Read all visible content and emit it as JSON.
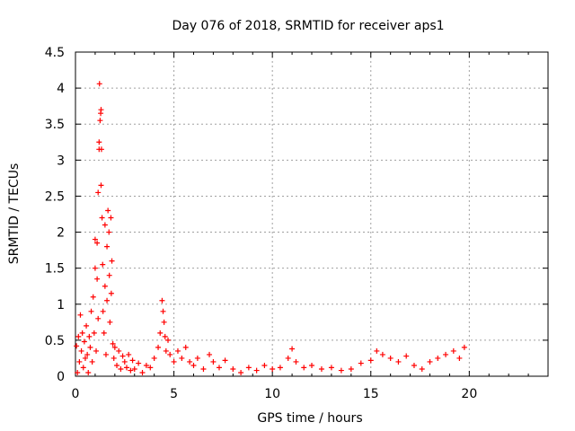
{
  "chart_data": {
    "type": "scatter",
    "title": "Day 076 of 2018, SRMTID for receiver aps1",
    "xlabel": "GPS time / hours",
    "ylabel": "SRMTID / TECUs",
    "xlim": [
      0,
      24
    ],
    "ylim": [
      0,
      4.5
    ],
    "x_ticks": [
      0,
      5,
      10,
      15,
      20
    ],
    "x_tick_labels": [
      "0",
      "5",
      "10",
      "15",
      "20"
    ],
    "y_ticks": [
      0,
      0.5,
      1,
      1.5,
      2,
      2.5,
      3,
      3.5,
      4,
      4.5
    ],
    "y_tick_labels": [
      "0",
      "0.5",
      "1",
      "1.5",
      "2",
      "2.5",
      "3",
      "3.5",
      "4",
      "4.5"
    ],
    "grid": true,
    "marker": "+",
    "color": "#ff0000",
    "series": [
      {
        "name": "aps1",
        "points": [
          [
            0.05,
            0.42
          ],
          [
            0.1,
            0.05
          ],
          [
            0.15,
            0.55
          ],
          [
            0.2,
            0.2
          ],
          [
            0.25,
            0.85
          ],
          [
            0.3,
            0.35
          ],
          [
            0.35,
            0.6
          ],
          [
            0.4,
            0.12
          ],
          [
            0.45,
            0.48
          ],
          [
            0.5,
            0.25
          ],
          [
            0.55,
            0.7
          ],
          [
            0.6,
            0.3
          ],
          [
            0.65,
            0.05
          ],
          [
            0.7,
            0.55
          ],
          [
            0.75,
            0.4
          ],
          [
            0.8,
            0.9
          ],
          [
            0.85,
            0.2
          ],
          [
            0.9,
            1.1
          ],
          [
            0.95,
            0.6
          ],
          [
            1.0,
            1.5
          ],
          [
            1.0,
            1.9
          ],
          [
            1.05,
            0.35
          ],
          [
            1.1,
            1.35
          ],
          [
            1.1,
            1.85
          ],
          [
            1.15,
            2.55
          ],
          [
            1.15,
            0.8
          ],
          [
            1.2,
            3.15
          ],
          [
            1.2,
            3.25
          ],
          [
            1.22,
            4.06
          ],
          [
            1.25,
            3.55
          ],
          [
            1.28,
            3.65
          ],
          [
            1.3,
            3.7
          ],
          [
            1.3,
            2.65
          ],
          [
            1.32,
            3.15
          ],
          [
            1.35,
            2.2
          ],
          [
            1.38,
            1.55
          ],
          [
            1.4,
            0.9
          ],
          [
            1.45,
            0.6
          ],
          [
            1.5,
            1.25
          ],
          [
            1.5,
            2.1
          ],
          [
            1.55,
            0.3
          ],
          [
            1.6,
            1.8
          ],
          [
            1.6,
            1.05
          ],
          [
            1.65,
            2.3
          ],
          [
            1.7,
            2.0
          ],
          [
            1.72,
            1.4
          ],
          [
            1.75,
            0.75
          ],
          [
            1.8,
            2.2
          ],
          [
            1.82,
            1.15
          ],
          [
            1.85,
            1.6
          ],
          [
            1.9,
            0.45
          ],
          [
            1.95,
            0.25
          ],
          [
            2.0,
            0.4
          ],
          [
            2.1,
            0.15
          ],
          [
            2.2,
            0.35
          ],
          [
            2.3,
            0.1
          ],
          [
            2.4,
            0.28
          ],
          [
            2.5,
            0.2
          ],
          [
            2.6,
            0.12
          ],
          [
            2.7,
            0.3
          ],
          [
            2.8,
            0.08
          ],
          [
            2.9,
            0.22
          ],
          [
            3.0,
            0.1
          ],
          [
            3.2,
            0.18
          ],
          [
            3.4,
            0.05
          ],
          [
            3.6,
            0.15
          ],
          [
            3.8,
            0.12
          ],
          [
            4.0,
            0.25
          ],
          [
            4.2,
            0.4
          ],
          [
            4.3,
            0.6
          ],
          [
            4.4,
            1.05
          ],
          [
            4.45,
            0.9
          ],
          [
            4.5,
            0.75
          ],
          [
            4.55,
            0.55
          ],
          [
            4.6,
            0.35
          ],
          [
            4.7,
            0.5
          ],
          [
            4.8,
            0.3
          ],
          [
            5.0,
            0.2
          ],
          [
            5.2,
            0.35
          ],
          [
            5.4,
            0.25
          ],
          [
            5.6,
            0.4
          ],
          [
            5.8,
            0.2
          ],
          [
            6.0,
            0.15
          ],
          [
            6.2,
            0.25
          ],
          [
            6.5,
            0.1
          ],
          [
            6.8,
            0.3
          ],
          [
            7.0,
            0.2
          ],
          [
            7.3,
            0.12
          ],
          [
            7.6,
            0.22
          ],
          [
            8.0,
            0.1
          ],
          [
            8.4,
            0.05
          ],
          [
            8.8,
            0.12
          ],
          [
            9.2,
            0.08
          ],
          [
            9.6,
            0.15
          ],
          [
            10.0,
            0.1
          ],
          [
            10.4,
            0.12
          ],
          [
            10.8,
            0.25
          ],
          [
            11.0,
            0.38
          ],
          [
            11.2,
            0.2
          ],
          [
            11.6,
            0.12
          ],
          [
            12.0,
            0.15
          ],
          [
            12.5,
            0.1
          ],
          [
            13.0,
            0.12
          ],
          [
            13.5,
            0.08
          ],
          [
            14.0,
            0.1
          ],
          [
            14.5,
            0.18
          ],
          [
            15.0,
            0.22
          ],
          [
            15.3,
            0.35
          ],
          [
            15.6,
            0.3
          ],
          [
            16.0,
            0.25
          ],
          [
            16.4,
            0.2
          ],
          [
            16.8,
            0.28
          ],
          [
            17.2,
            0.15
          ],
          [
            17.6,
            0.1
          ],
          [
            18.0,
            0.2
          ],
          [
            18.4,
            0.25
          ],
          [
            18.8,
            0.3
          ],
          [
            19.2,
            0.35
          ],
          [
            19.5,
            0.25
          ],
          [
            19.75,
            0.4
          ]
        ]
      }
    ]
  }
}
